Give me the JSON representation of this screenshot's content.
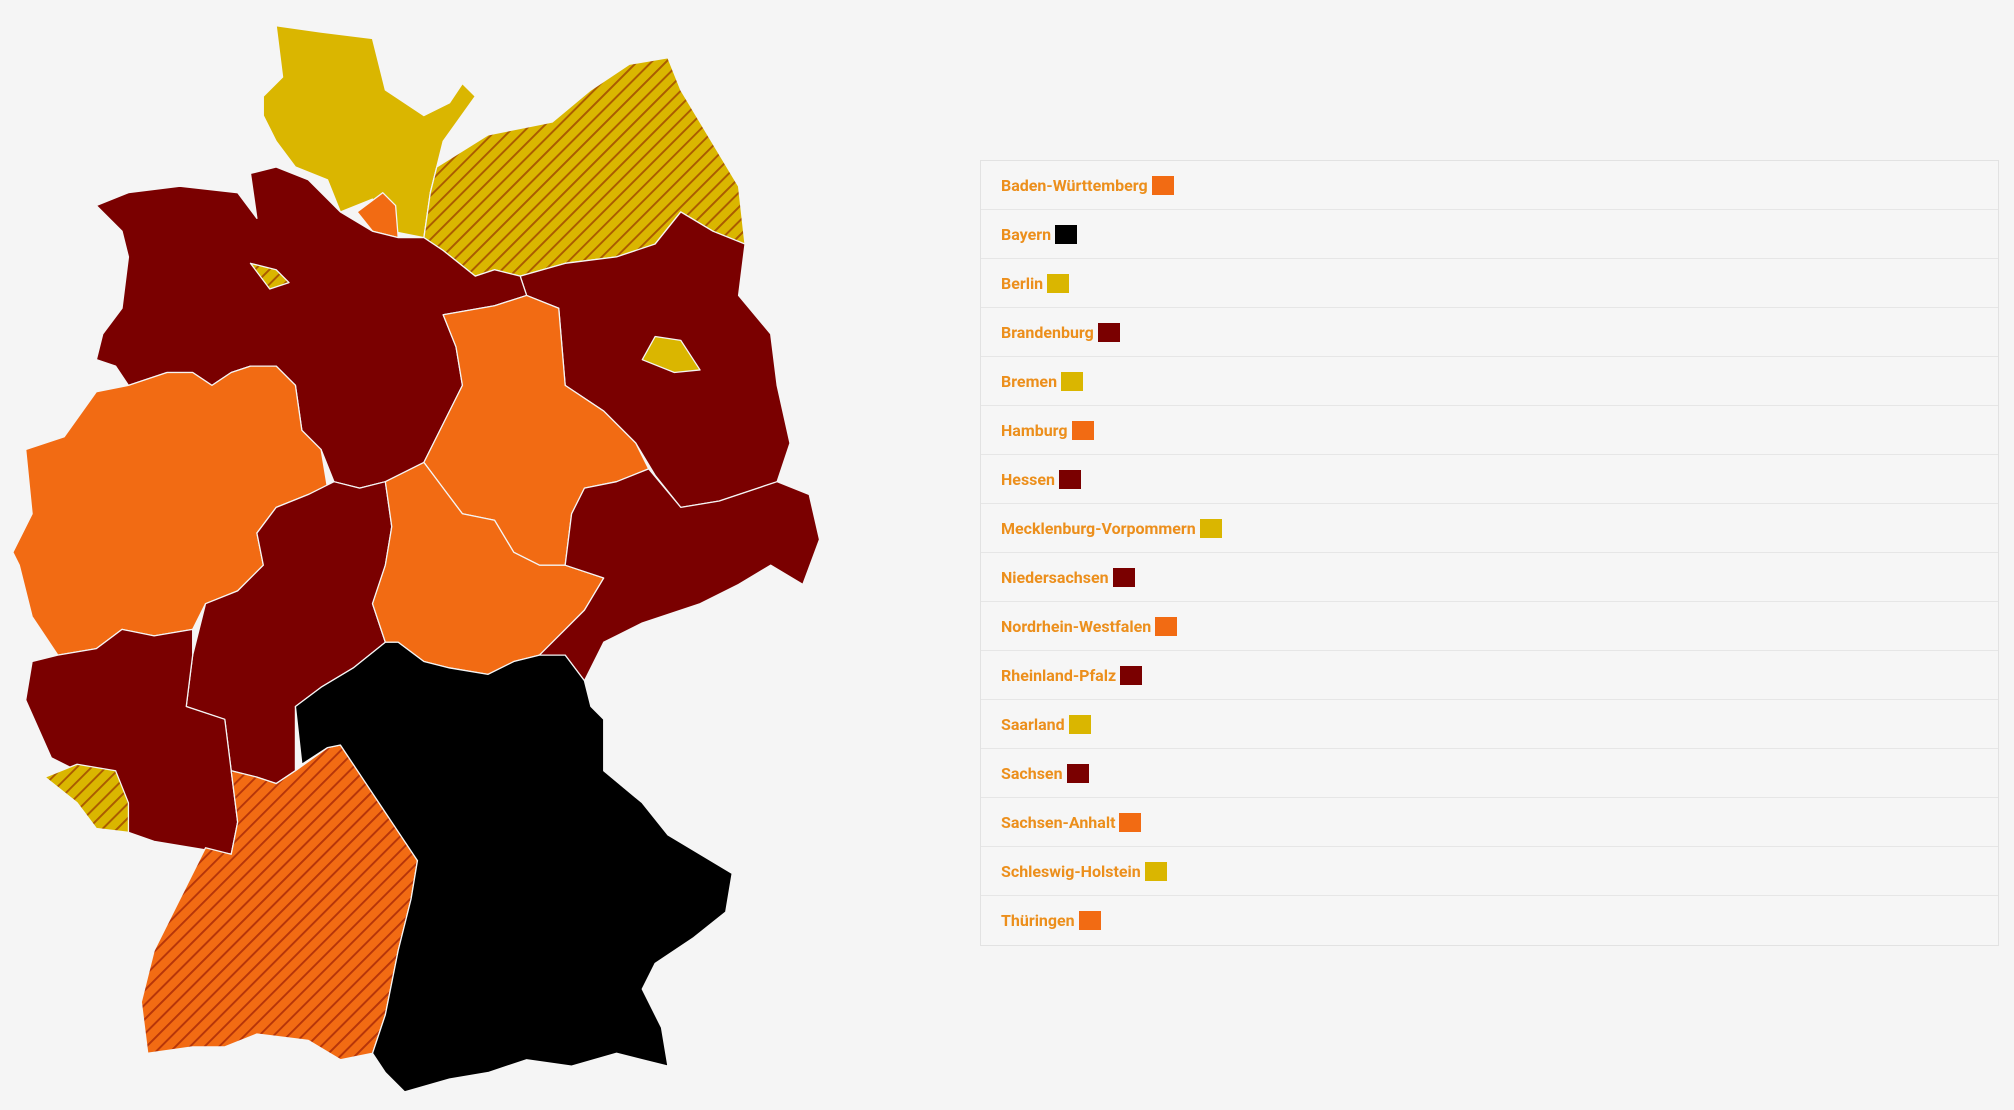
{
  "states": [
    {
      "name": "Baden-Württemberg",
      "color": "#f26b13",
      "hatched": true
    },
    {
      "name": "Bayern",
      "color": "#000000",
      "hatched": false
    },
    {
      "name": "Berlin",
      "color": "#dab600",
      "hatched": false
    },
    {
      "name": "Brandenburg",
      "color": "#7a0000",
      "hatched": false
    },
    {
      "name": "Bremen",
      "color": "#dab600",
      "hatched": true
    },
    {
      "name": "Hamburg",
      "color": "#f26b13",
      "hatched": false
    },
    {
      "name": "Hessen",
      "color": "#7a0000",
      "hatched": false
    },
    {
      "name": "Mecklenburg-Vorpommern",
      "color": "#dab600",
      "hatched": true
    },
    {
      "name": "Niedersachsen",
      "color": "#7a0000",
      "hatched": false
    },
    {
      "name": "Nordrhein-Westfalen",
      "color": "#f26b13",
      "hatched": false
    },
    {
      "name": "Rheinland-Pfalz",
      "color": "#7a0000",
      "hatched": false
    },
    {
      "name": "Saarland",
      "color": "#dab600",
      "hatched": true
    },
    {
      "name": "Sachsen",
      "color": "#7a0000",
      "hatched": false
    },
    {
      "name": "Sachsen-Anhalt",
      "color": "#f26b13",
      "hatched": false
    },
    {
      "name": "Schleswig-Holstein",
      "color": "#dab600",
      "hatched": false
    },
    {
      "name": "Thüringen",
      "color": "#f26b13",
      "hatched": false
    }
  ]
}
